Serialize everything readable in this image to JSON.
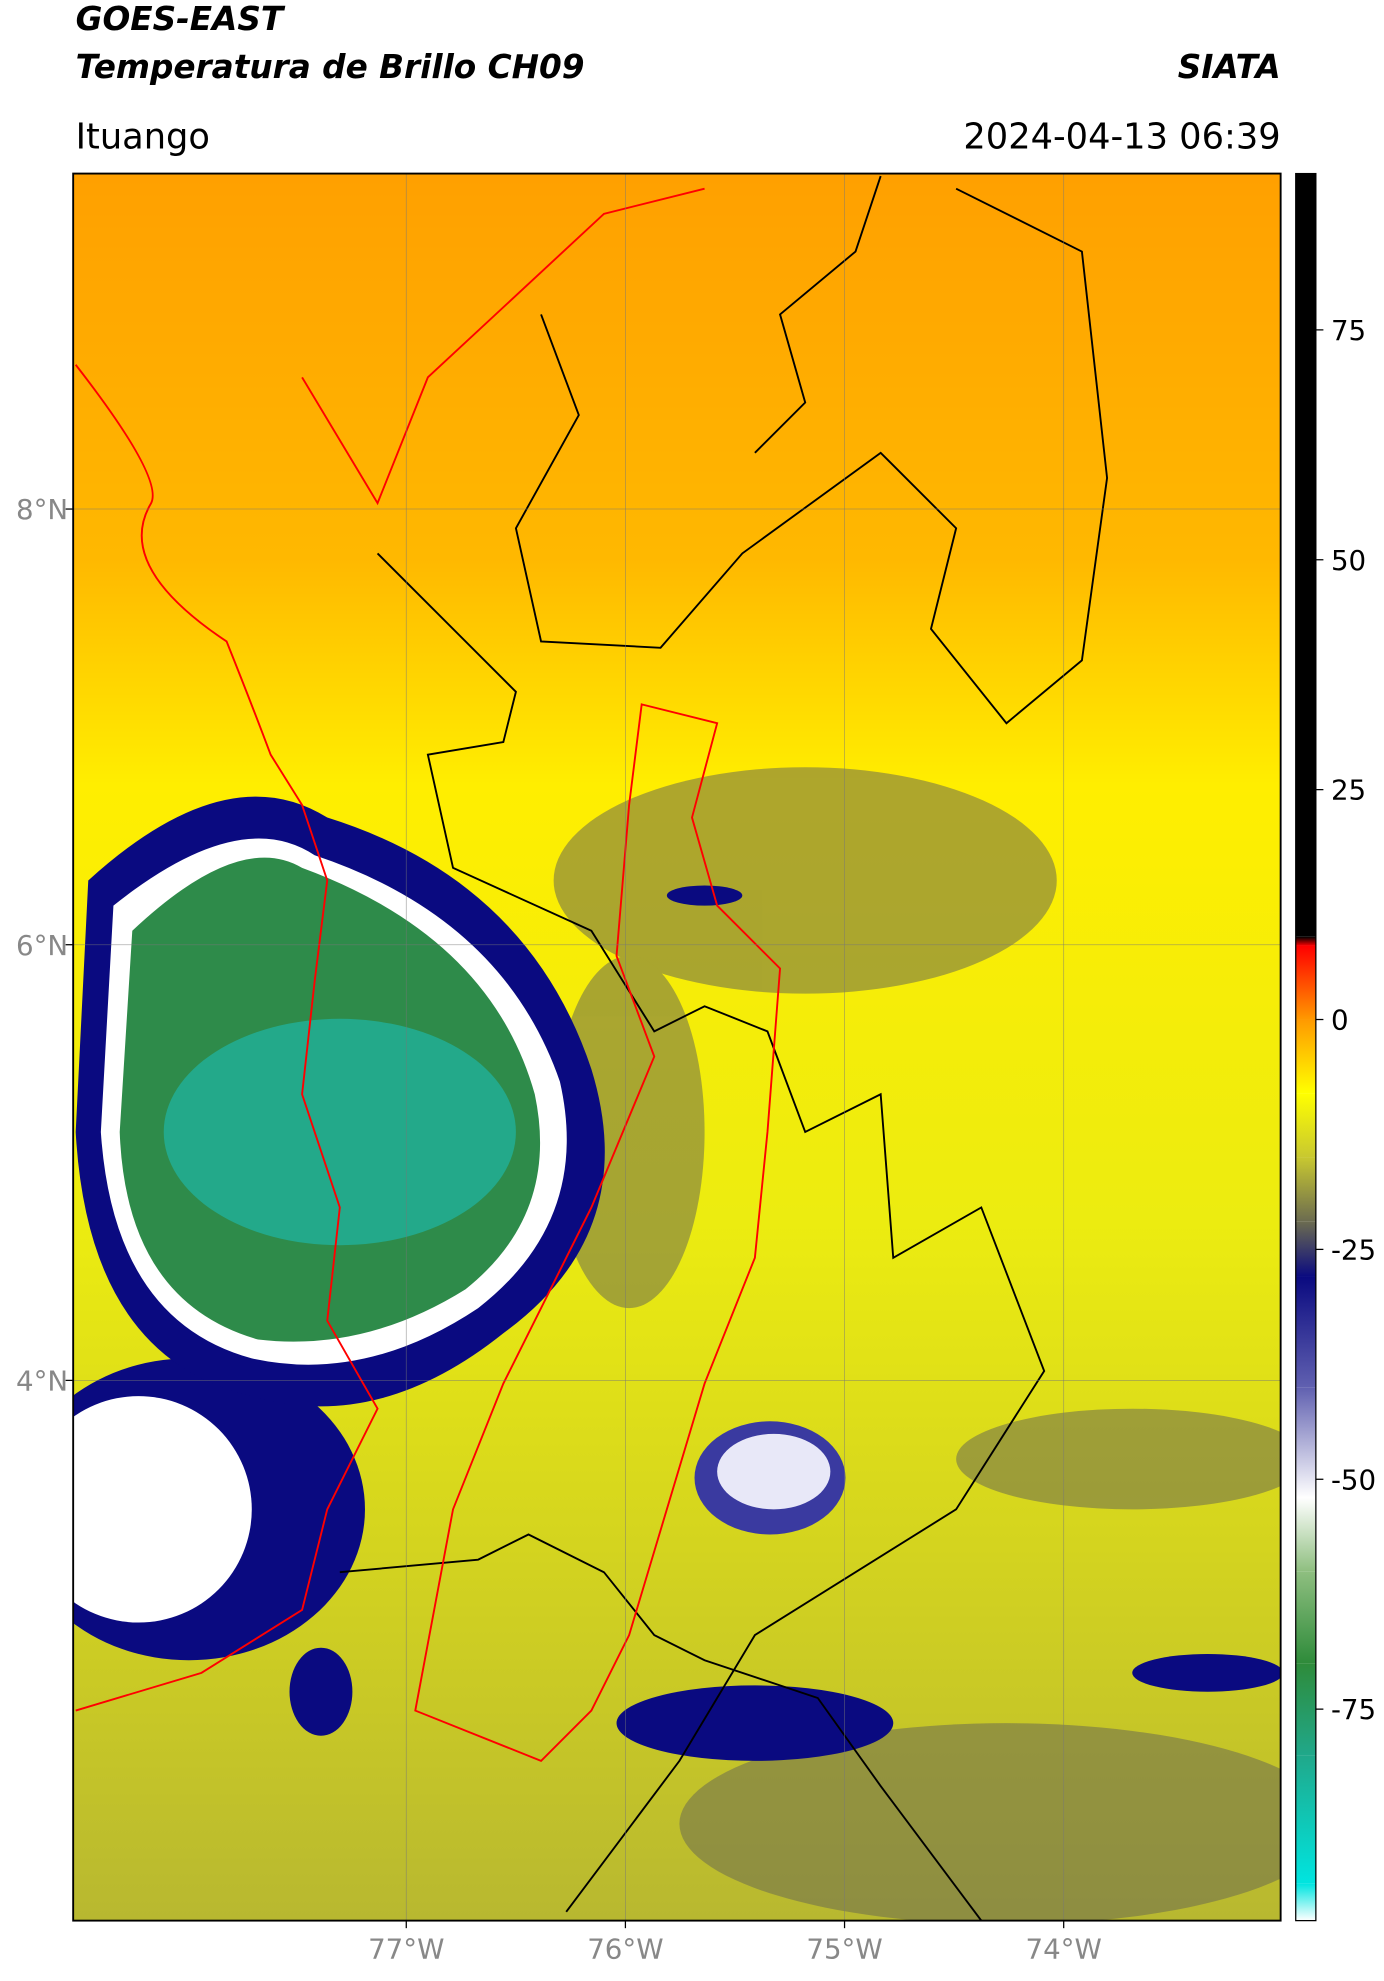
{
  "header": {
    "title_line1": "GOES-EAST",
    "title_line2": "Temperatura de Brillo CH09",
    "org": "SIATA",
    "location": "Ituango",
    "datetime": "2024-04-13 06:39"
  },
  "map": {
    "xlim": [
      -78.52,
      -73.01
    ],
    "ylim": [
      1.52,
      9.54
    ],
    "xticks": [
      {
        "value": -77,
        "label": "77°W"
      },
      {
        "value": -76,
        "label": "76°W"
      },
      {
        "value": -75,
        "label": "75°W"
      },
      {
        "value": -74,
        "label": "74°W"
      }
    ],
    "yticks": [
      {
        "value": 8,
        "label": "8°N"
      },
      {
        "value": 6,
        "label": "6°N"
      },
      {
        "value": 4,
        "label": "4°N"
      }
    ],
    "grid": true
  },
  "colorbar": {
    "lim": [
      -98,
      92
    ],
    "ticks": [
      75,
      50,
      25,
      0,
      -25,
      -50,
      -75
    ],
    "stops": [
      {
        "value": -98,
        "color": "#ffffff"
      },
      {
        "value": -94,
        "color": "#00e5e0"
      },
      {
        "value": -80,
        "color": "#20a88a"
      },
      {
        "value": -70,
        "color": "#2e8b3a"
      },
      {
        "value": -60,
        "color": "#8fbf80"
      },
      {
        "value": -52,
        "color": "#ffffff"
      },
      {
        "value": -40,
        "color": "#6060b0"
      },
      {
        "value": -28,
        "color": "#0a0a80"
      },
      {
        "value": -22,
        "color": "#6b6b50"
      },
      {
        "value": -15,
        "color": "#c8c830"
      },
      {
        "value": -8,
        "color": "#ffff00"
      },
      {
        "value": 0,
        "color": "#ff9900"
      },
      {
        "value": 8,
        "color": "#ff0000"
      },
      {
        "value": 9,
        "color": "#000000"
      }
    ]
  }
}
